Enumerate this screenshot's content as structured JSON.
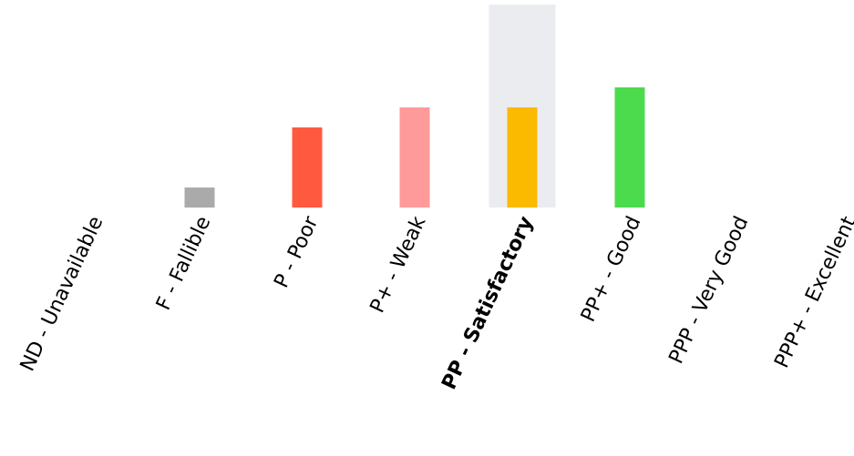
{
  "chart_data": {
    "type": "bar",
    "title": "",
    "xlabel": "",
    "ylabel": "",
    "categories": [
      "ND - Unavailable",
      "F - Fallible",
      "P - Poor",
      "P+ - Weak",
      "PP - Satisfactory",
      "PP+ - Good",
      "PPP - Very Good",
      "PPP+ - Excellent"
    ],
    "values": [
      0,
      1,
      4,
      5,
      5,
      6,
      0,
      0
    ],
    "ylim": [
      0,
      10
    ],
    "colors": [
      "#aaaaaa",
      "#aaaaaa",
      "#ff5a40",
      "#ff9a9a",
      "#fbba00",
      "#4cdb4c",
      "#aaaaaa",
      "#aaaaaa"
    ],
    "highlight_index": 4,
    "highlight_color": "#ebecef",
    "grid": false,
    "legend": "none"
  }
}
